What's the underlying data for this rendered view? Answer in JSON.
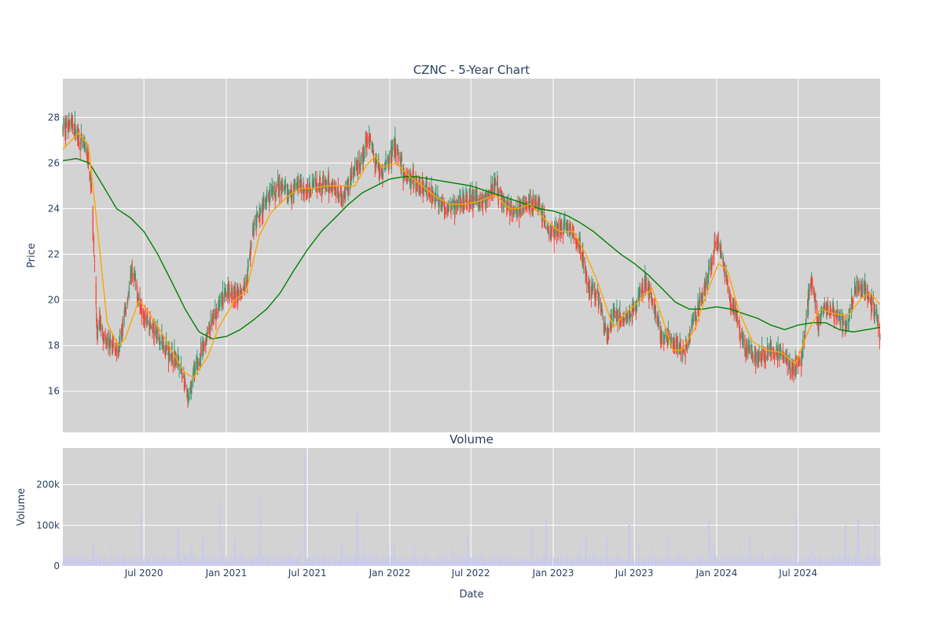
{
  "chart_data": {
    "type": "candlestick",
    "title": "CZNC - 5-Year Chart",
    "volume_title": "Volume",
    "xlabel": "Date",
    "ylabel": "Price",
    "volume_ylabel": "Volume",
    "grid": true,
    "legend": "none",
    "x_ticks": [
      "Jul 2020",
      "Jan 2021",
      "Jul 2021",
      "Jan 2022",
      "Jul 2022",
      "Jan 2023",
      "Jul 2023",
      "Jan 2024",
      "Jul 2024"
    ],
    "x_range": [
      "2020-01-02",
      "2024-12-31"
    ],
    "price_ylim": [
      14.2,
      29.7
    ],
    "price_y_ticks": [
      16,
      18,
      20,
      22,
      24,
      26,
      28
    ],
    "volume_ylim": [
      0,
      290000
    ],
    "volume_y_ticks": [
      0,
      100000,
      200000
    ],
    "volume_y_tick_labels": [
      "0",
      "100k",
      "200k"
    ],
    "colors": {
      "plot_bg": "#d3d3d3",
      "grid": "#ffffff",
      "up": "#3d9970",
      "down": "#ff4136",
      "sma_short": "#ffa500",
      "sma_long": "#008000",
      "volume": "#c8c8f0",
      "text": "#2a3f5f"
    },
    "price_anchors": [
      [
        "2020-01-02",
        27.5
      ],
      [
        "2020-01-20",
        27.8
      ],
      [
        "2020-02-10",
        27.0
      ],
      [
        "2020-02-25",
        26.4
      ],
      [
        "2020-03-05",
        25.0
      ],
      [
        "2020-03-12",
        22.0
      ],
      [
        "2020-03-18",
        18.5
      ],
      [
        "2020-03-25",
        19.0
      ],
      [
        "2020-04-05",
        18.2
      ],
      [
        "2020-04-20",
        18.0
      ],
      [
        "2020-05-05",
        17.7
      ],
      [
        "2020-05-20",
        19.5
      ],
      [
        "2020-06-05",
        21.3
      ],
      [
        "2020-06-20",
        20.0
      ],
      [
        "2020-07-05",
        19.3
      ],
      [
        "2020-07-25",
        18.6
      ],
      [
        "2020-08-15",
        18.0
      ],
      [
        "2020-09-10",
        17.4
      ],
      [
        "2020-09-25",
        16.8
      ],
      [
        "2020-10-08",
        15.5
      ],
      [
        "2020-10-20",
        16.8
      ],
      [
        "2020-11-05",
        17.5
      ],
      [
        "2020-11-20",
        18.6
      ],
      [
        "2020-12-10",
        19.5
      ],
      [
        "2021-01-05",
        20.5
      ],
      [
        "2021-01-25",
        20.2
      ],
      [
        "2021-02-15",
        20.8
      ],
      [
        "2021-03-01",
        23.0
      ],
      [
        "2021-03-20",
        24.0
      ],
      [
        "2021-04-10",
        24.5
      ],
      [
        "2021-05-01",
        25.0
      ],
      [
        "2021-05-20",
        24.6
      ],
      [
        "2021-06-10",
        25.0
      ],
      [
        "2021-07-01",
        24.8
      ],
      [
        "2021-07-20",
        25.2
      ],
      [
        "2021-08-10",
        25.0
      ],
      [
        "2021-09-01",
        24.9
      ],
      [
        "2021-09-20",
        24.5
      ],
      [
        "2021-10-10",
        25.5
      ],
      [
        "2021-10-30",
        26.0
      ],
      [
        "2021-11-15",
        27.3
      ],
      [
        "2021-11-30",
        26.0
      ],
      [
        "2021-12-15",
        25.6
      ],
      [
        "2021-12-31",
        26.2
      ],
      [
        "2022-01-15",
        26.8
      ],
      [
        "2022-01-31",
        25.6
      ],
      [
        "2022-02-15",
        25.3
      ],
      [
        "2022-03-15",
        25.0
      ],
      [
        "2022-04-15",
        24.4
      ],
      [
        "2022-05-10",
        24.0
      ],
      [
        "2022-06-01",
        24.2
      ],
      [
        "2022-07-01",
        24.5
      ],
      [
        "2022-08-01",
        24.3
      ],
      [
        "2022-08-25",
        25.0
      ],
      [
        "2022-09-15",
        24.2
      ],
      [
        "2022-10-10",
        23.8
      ],
      [
        "2022-11-01",
        24.2
      ],
      [
        "2022-11-25",
        24.3
      ],
      [
        "2022-12-20",
        23.0
      ],
      [
        "2023-01-10",
        23.0
      ],
      [
        "2023-02-01",
        23.3
      ],
      [
        "2023-02-20",
        22.8
      ],
      [
        "2023-03-08",
        22.0
      ],
      [
        "2023-03-20",
        20.5
      ],
      [
        "2023-04-10",
        20.2
      ],
      [
        "2023-05-01",
        18.3
      ],
      [
        "2023-05-15",
        19.5
      ],
      [
        "2023-06-10",
        19.0
      ],
      [
        "2023-07-01",
        19.5
      ],
      [
        "2023-07-25",
        20.8
      ],
      [
        "2023-08-10",
        20.0
      ],
      [
        "2023-08-28",
        18.5
      ],
      [
        "2023-09-20",
        18.2
      ],
      [
        "2023-10-20",
        17.7
      ],
      [
        "2023-11-10",
        19.0
      ],
      [
        "2023-12-01",
        20.3
      ],
      [
        "2023-12-20",
        21.5
      ],
      [
        "2023-12-31",
        22.8
      ],
      [
        "2024-01-15",
        21.5
      ],
      [
        "2024-02-01",
        20.0
      ],
      [
        "2024-02-15",
        19.2
      ],
      [
        "2024-03-01",
        18.0
      ],
      [
        "2024-04-01",
        17.5
      ],
      [
        "2024-05-01",
        17.8
      ],
      [
        "2024-06-01",
        17.5
      ],
      [
        "2024-06-20",
        17.0
      ],
      [
        "2024-07-10",
        17.5
      ],
      [
        "2024-07-20",
        19.5
      ],
      [
        "2024-07-31",
        21.0
      ],
      [
        "2024-08-15",
        19.0
      ],
      [
        "2024-09-01",
        19.7
      ],
      [
        "2024-09-30",
        19.2
      ],
      [
        "2024-10-20",
        18.9
      ],
      [
        "2024-11-06",
        20.6
      ],
      [
        "2024-11-25",
        20.4
      ],
      [
        "2024-12-15",
        19.8
      ],
      [
        "2024-12-31",
        18.5
      ]
    ],
    "sma_short_anchors": [
      [
        "2020-01-02",
        26.6
      ],
      [
        "2020-02-05",
        27.3
      ],
      [
        "2020-02-28",
        26.8
      ],
      [
        "2020-03-20",
        23.0
      ],
      [
        "2020-04-10",
        19.0
      ],
      [
        "2020-05-05",
        18.0
      ],
      [
        "2020-05-20",
        18.3
      ],
      [
        "2020-06-20",
        20.0
      ],
      [
        "2020-07-10",
        19.5
      ],
      [
        "2020-08-15",
        18.4
      ],
      [
        "2020-09-15",
        17.3
      ],
      [
        "2020-10-01",
        16.8
      ],
      [
        "2020-10-20",
        16.6
      ],
      [
        "2020-11-20",
        17.5
      ],
      [
        "2020-12-15",
        18.8
      ],
      [
        "2021-01-20",
        20.0
      ],
      [
        "2021-02-15",
        20.4
      ],
      [
        "2021-03-15",
        22.8
      ],
      [
        "2021-04-10",
        23.8
      ],
      [
        "2021-05-15",
        24.5
      ],
      [
        "2021-06-15",
        24.9
      ],
      [
        "2021-07-15",
        24.9
      ],
      [
        "2021-08-15",
        25.0
      ],
      [
        "2021-09-15",
        25.0
      ],
      [
        "2021-10-15",
        25.0
      ],
      [
        "2021-11-10",
        25.9
      ],
      [
        "2021-11-30",
        26.3
      ],
      [
        "2021-12-15",
        25.8
      ],
      [
        "2022-01-15",
        26.0
      ],
      [
        "2022-02-15",
        25.4
      ],
      [
        "2022-03-15",
        25.0
      ],
      [
        "2022-04-15",
        24.5
      ],
      [
        "2022-05-15",
        24.2
      ],
      [
        "2022-06-15",
        24.2
      ],
      [
        "2022-07-15",
        24.3
      ],
      [
        "2022-08-25",
        24.6
      ],
      [
        "2022-09-25",
        24.0
      ],
      [
        "2022-10-15",
        24.0
      ],
      [
        "2022-11-10",
        24.2
      ],
      [
        "2022-12-15",
        23.5
      ],
      [
        "2023-01-15",
        23.0
      ],
      [
        "2023-02-15",
        23.0
      ],
      [
        "2023-03-15",
        22.0
      ],
      [
        "2023-04-10",
        20.8
      ],
      [
        "2023-05-15",
        18.8
      ],
      [
        "2023-06-15",
        19.5
      ],
      [
        "2023-07-15",
        20.0
      ],
      [
        "2023-08-10",
        20.5
      ],
      [
        "2023-09-05",
        19.0
      ],
      [
        "2023-09-25",
        17.8
      ],
      [
        "2023-10-15",
        17.8
      ],
      [
        "2023-11-15",
        18.8
      ],
      [
        "2023-12-10",
        20.3
      ],
      [
        "2024-01-05",
        21.6
      ],
      [
        "2024-01-25",
        21.3
      ],
      [
        "2024-02-20",
        19.5
      ],
      [
        "2024-03-20",
        18.2
      ],
      [
        "2024-04-20",
        17.8
      ],
      [
        "2024-05-25",
        17.7
      ],
      [
        "2024-06-25",
        17.2
      ],
      [
        "2024-07-25",
        18.7
      ],
      [
        "2024-08-20",
        19.6
      ],
      [
        "2024-09-20",
        19.4
      ],
      [
        "2024-10-20",
        19.3
      ],
      [
        "2024-11-20",
        20.1
      ],
      [
        "2024-12-10",
        20.3
      ],
      [
        "2024-12-31",
        19.8
      ]
    ],
    "sma_long_anchors": [
      [
        "2020-01-02",
        26.1
      ],
      [
        "2020-02-01",
        26.2
      ],
      [
        "2020-03-01",
        26.0
      ],
      [
        "2020-04-01",
        25.0
      ],
      [
        "2020-05-01",
        24.0
      ],
      [
        "2020-06-01",
        23.6
      ],
      [
        "2020-07-01",
        23.0
      ],
      [
        "2020-08-01",
        22.0
      ],
      [
        "2020-09-01",
        20.8
      ],
      [
        "2020-10-01",
        19.6
      ],
      [
        "2020-11-01",
        18.6
      ],
      [
        "2020-12-01",
        18.3
      ],
      [
        "2021-01-01",
        18.4
      ],
      [
        "2021-02-01",
        18.7
      ],
      [
        "2021-03-01",
        19.1
      ],
      [
        "2021-04-01",
        19.6
      ],
      [
        "2021-05-01",
        20.3
      ],
      [
        "2021-06-01",
        21.3
      ],
      [
        "2021-07-01",
        22.2
      ],
      [
        "2021-08-01",
        23.0
      ],
      [
        "2021-09-01",
        23.6
      ],
      [
        "2021-10-01",
        24.2
      ],
      [
        "2021-11-01",
        24.7
      ],
      [
        "2021-12-01",
        25.0
      ],
      [
        "2022-01-01",
        25.3
      ],
      [
        "2022-02-01",
        25.4
      ],
      [
        "2022-03-01",
        25.4
      ],
      [
        "2022-04-01",
        25.3
      ],
      [
        "2022-05-01",
        25.2
      ],
      [
        "2022-06-01",
        25.1
      ],
      [
        "2022-07-01",
        25.0
      ],
      [
        "2022-08-01",
        24.8
      ],
      [
        "2022-09-01",
        24.6
      ],
      [
        "2022-10-01",
        24.4
      ],
      [
        "2022-11-01",
        24.2
      ],
      [
        "2022-12-01",
        24.0
      ],
      [
        "2023-01-01",
        23.9
      ],
      [
        "2023-02-01",
        23.7
      ],
      [
        "2023-03-01",
        23.4
      ],
      [
        "2023-04-01",
        23.0
      ],
      [
        "2023-05-01",
        22.5
      ],
      [
        "2023-06-01",
        22.0
      ],
      [
        "2023-07-01",
        21.6
      ],
      [
        "2023-08-01",
        21.1
      ],
      [
        "2023-09-01",
        20.5
      ],
      [
        "2023-10-01",
        19.9
      ],
      [
        "2023-11-01",
        19.6
      ],
      [
        "2023-12-01",
        19.6
      ],
      [
        "2024-01-01",
        19.7
      ],
      [
        "2024-02-01",
        19.6
      ],
      [
        "2024-03-01",
        19.4
      ],
      [
        "2024-04-01",
        19.2
      ],
      [
        "2024-05-01",
        18.9
      ],
      [
        "2024-06-01",
        18.7
      ],
      [
        "2024-07-01",
        18.9
      ],
      [
        "2024-08-01",
        19.0
      ],
      [
        "2024-09-01",
        19.0
      ],
      [
        "2024-10-01",
        18.7
      ],
      [
        "2024-11-01",
        18.6
      ],
      [
        "2024-12-01",
        18.7
      ],
      [
        "2024-12-31",
        18.8
      ]
    ],
    "volume_spikes": [
      [
        "2020-03-10",
        55000
      ],
      [
        "2020-06-26",
        140000
      ],
      [
        "2020-09-15",
        95000
      ],
      [
        "2020-11-10",
        70000
      ],
      [
        "2020-12-18",
        160000
      ],
      [
        "2021-01-20",
        65000
      ],
      [
        "2021-03-19",
        175000
      ],
      [
        "2021-06-25",
        285000
      ],
      [
        "2021-09-15",
        50000
      ],
      [
        "2021-10-20",
        135000
      ],
      [
        "2022-01-10",
        55000
      ],
      [
        "2022-05-20",
        45000
      ],
      [
        "2022-06-24",
        85000
      ],
      [
        "2022-11-15",
        95000
      ],
      [
        "2022-12-16",
        120000
      ],
      [
        "2023-03-15",
        80000
      ],
      [
        "2023-05-01",
        70000
      ],
      [
        "2023-06-20",
        105000
      ],
      [
        "2023-09-15",
        75000
      ],
      [
        "2023-12-15",
        110000
      ],
      [
        "2024-03-15",
        75000
      ],
      [
        "2024-06-28",
        125000
      ],
      [
        "2024-10-15",
        100000
      ],
      [
        "2024-11-12",
        120000
      ],
      [
        "2024-12-20",
        105000
      ]
    ],
    "volume_base": 15000
  }
}
